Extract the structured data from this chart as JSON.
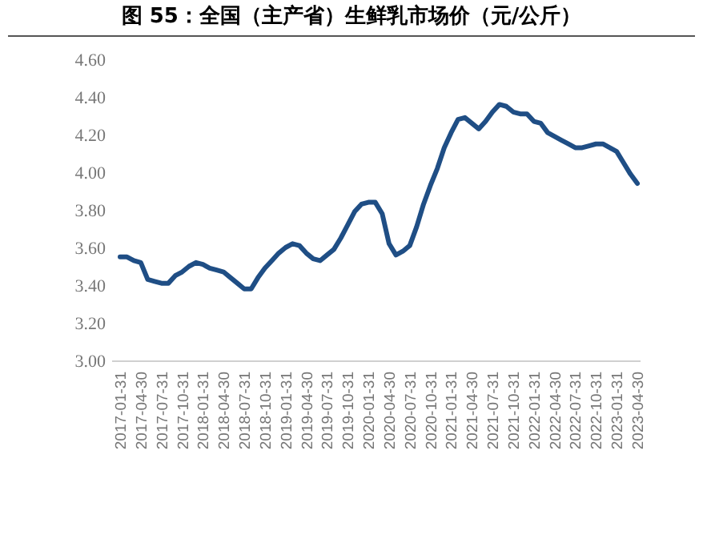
{
  "chart_data": {
    "type": "line",
    "title": "图 55：全国（主产省）生鲜乳市场价（元/公斤）",
    "categories": [
      "2017-01-31",
      null,
      null,
      "2017-04-30",
      null,
      null,
      "2017-07-31",
      null,
      null,
      "2017-10-31",
      null,
      null,
      "2018-01-31",
      null,
      null,
      "2018-04-30",
      null,
      null,
      "2018-07-31",
      null,
      null,
      "2018-10-31",
      null,
      null,
      "2019-01-31",
      null,
      null,
      "2019-04-30",
      null,
      null,
      "2019-07-31",
      null,
      null,
      "2019-10-31",
      null,
      null,
      "2020-01-31",
      null,
      null,
      "2020-04-30",
      null,
      null,
      "2020-07-31",
      null,
      null,
      "2020-10-31",
      null,
      null,
      "2021-01-31",
      null,
      null,
      "2021-04-30",
      null,
      null,
      "2021-07-31",
      null,
      null,
      "2021-10-31",
      null,
      null,
      "2022-01-31",
      null,
      null,
      "2022-04-30",
      null,
      null,
      "2022-07-31",
      null,
      null,
      "2022-10-31",
      null,
      null,
      "2023-01-31",
      null,
      null,
      "2023-04-30"
    ],
    "series": [
      {
        "color": "#1f4e85",
        "values": [
          3.55,
          3.55,
          3.53,
          3.52,
          3.43,
          3.42,
          3.41,
          3.41,
          3.45,
          3.47,
          3.5,
          3.52,
          3.51,
          3.49,
          3.48,
          3.47,
          3.44,
          3.41,
          3.38,
          3.38,
          3.44,
          3.49,
          3.53,
          3.57,
          3.6,
          3.62,
          3.61,
          3.57,
          3.54,
          3.53,
          3.56,
          3.59,
          3.65,
          3.72,
          3.79,
          3.83,
          3.84,
          3.84,
          3.78,
          3.62,
          3.56,
          3.58,
          3.61,
          3.71,
          3.83,
          3.93,
          4.02,
          4.13,
          4.21,
          4.28,
          4.29,
          4.26,
          4.23,
          4.27,
          4.32,
          4.36,
          4.35,
          4.32,
          4.31,
          4.31,
          4.27,
          4.26,
          4.21,
          4.19,
          4.17,
          4.15,
          4.13,
          4.13,
          4.14,
          4.15,
          4.15,
          4.13,
          4.11,
          4.05,
          3.99,
          3.94
        ]
      }
    ],
    "ylim": [
      3.0,
      4.6
    ],
    "yticks": [
      {
        "value": 3.0,
        "label": "3.00"
      },
      {
        "value": 3.2,
        "label": "3.20"
      },
      {
        "value": 3.4,
        "label": "3.40"
      },
      {
        "value": 3.6,
        "label": "3.60"
      },
      {
        "value": 3.8,
        "label": "3.80"
      },
      {
        "value": 4.0,
        "label": "4.00"
      },
      {
        "value": 4.2,
        "label": "4.20"
      },
      {
        "value": 4.4,
        "label": "4.40"
      },
      {
        "value": 4.6,
        "label": "4.60"
      }
    ],
    "grid": false,
    "marker": "none",
    "line_style": "solid"
  }
}
